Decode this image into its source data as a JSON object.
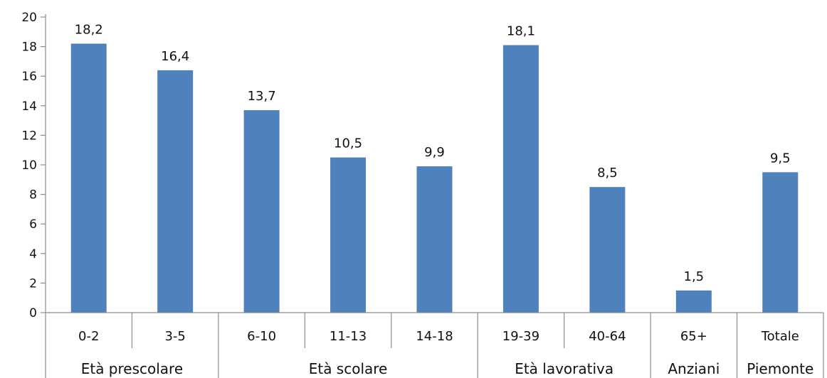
{
  "chart_data": {
    "type": "bar",
    "categories": [
      "0-2",
      "3-5",
      "6-10",
      "11-13",
      "14-18",
      "19-39",
      "40-64",
      "65+",
      "Totale"
    ],
    "groups": [
      {
        "label": "Età prescolare",
        "categories": [
          "0-2",
          "3-5"
        ]
      },
      {
        "label": "Età scolare",
        "categories": [
          "6-10",
          "11-13",
          "14-18"
        ]
      },
      {
        "label": "Età lavorativa",
        "categories": [
          "19-39",
          "40-64"
        ]
      },
      {
        "label": "Anziani",
        "categories": [
          "65+"
        ]
      },
      {
        "label": "Piemonte",
        "categories": [
          "Totale"
        ]
      }
    ],
    "series": [
      {
        "values": [
          18.2,
          16.4,
          13.7,
          10.5,
          9.9,
          18.1,
          8.5,
          1.5,
          9.5
        ],
        "labels": [
          "18,2",
          "16,4",
          "13,7",
          "10,5",
          "9,9",
          "18,1",
          "8,5",
          "1,5",
          "9,5"
        ]
      }
    ],
    "ylim": [
      0,
      20
    ],
    "yticks": [
      0,
      2,
      4,
      6,
      8,
      10,
      12,
      14,
      16,
      18,
      20
    ],
    "title": "",
    "xlabel": "",
    "ylabel": "",
    "grid": false,
    "bar_color": "#4F81BD",
    "axis_color": "#8C8C8C"
  }
}
